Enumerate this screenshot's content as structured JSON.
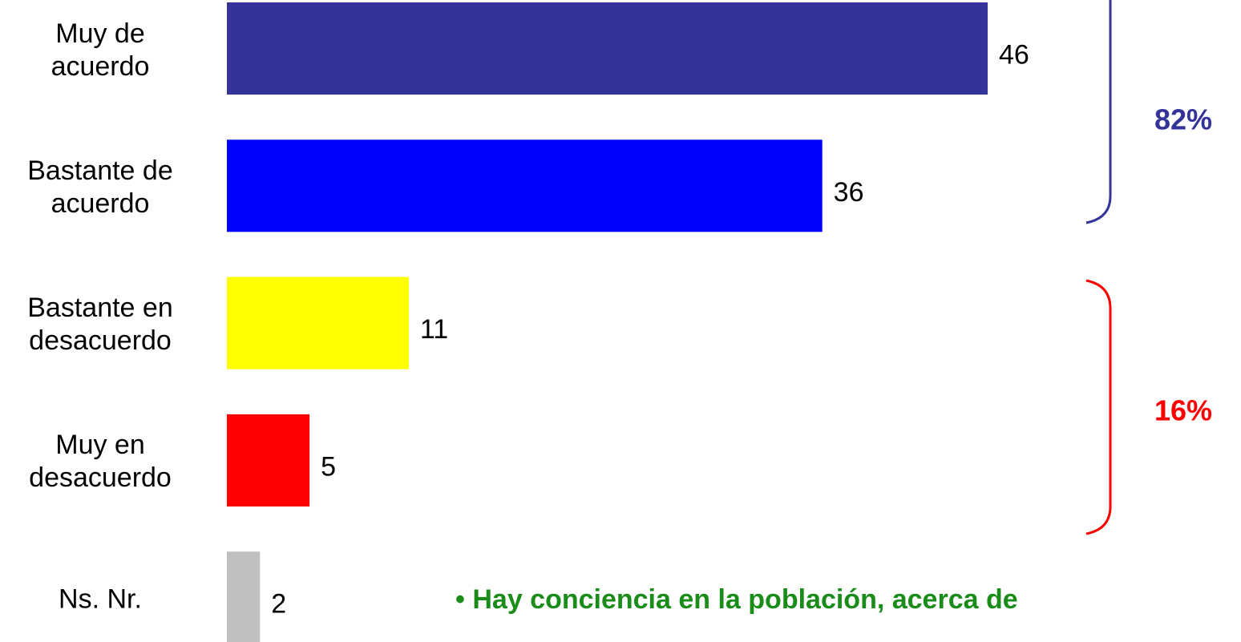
{
  "chart_data": {
    "type": "bar",
    "orientation": "horizontal",
    "categories": [
      "Muy de\nacuerdo",
      "Bastante de\nacuerdo",
      "Bastante en\ndesacuerdo",
      "Muy en\ndesacuerdo",
      "Ns. Nr."
    ],
    "values": [
      46,
      36,
      11,
      5,
      2
    ],
    "colors": [
      "#333399",
      "#0000ff",
      "#ffff00",
      "#ff0000",
      "#c0c0c0"
    ],
    "annotations": [
      "82%",
      "16%",
      "• Hay conciencia en la población, acerca de"
    ]
  }
}
